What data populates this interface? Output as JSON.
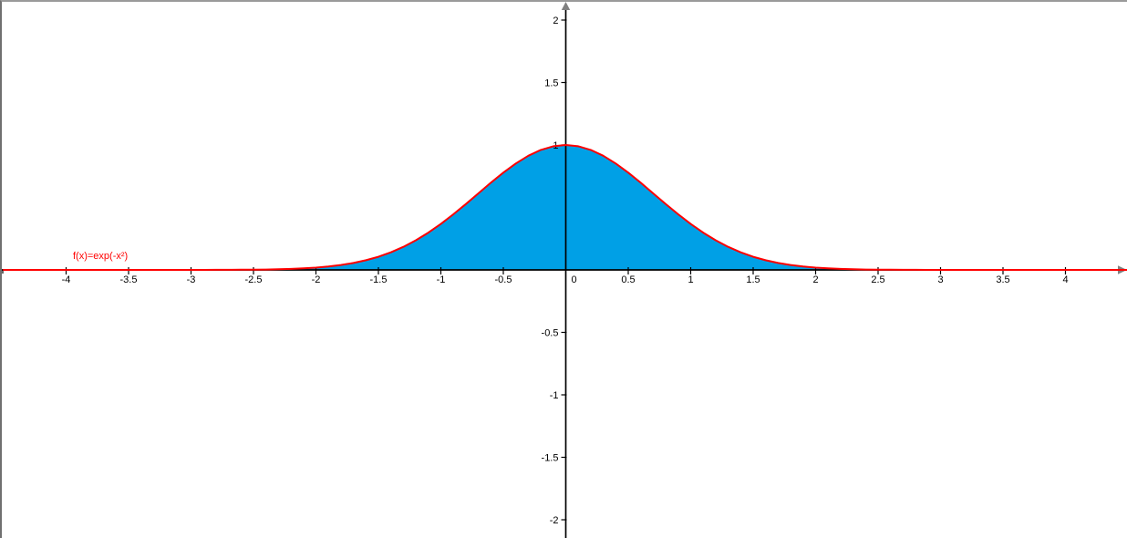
{
  "window": {
    "background_color": "#FFFFFF",
    "border_top_color": "#9A9A9A",
    "border_left_color": "#707070"
  },
  "chart_data": {
    "type": "area",
    "title": "",
    "function_label": "f(x)=exp(-x²)",
    "function_label_color": "#FF0000",
    "curve_color": "#FF0000",
    "fill_color": "#00A0E6",
    "axis_color": "#000000",
    "arrow_color": "#808080",
    "grid": false,
    "legend_position": "none",
    "x_axis": {
      "min": -4.53,
      "max": 4.5,
      "tick_step": 0.5,
      "visible_tick_labels": [
        "-4",
        "-3.5",
        "-3",
        "-2.5",
        "-2",
        "-1.5",
        "-1",
        "-0.5",
        "0",
        "0.5",
        "1",
        "1.5",
        "2",
        "2.5",
        "3",
        "3.5",
        "4"
      ]
    },
    "y_axis": {
      "min": -2.15,
      "max": 2.15,
      "tick_step": 0.5,
      "visible_tick_labels": [
        "2",
        "1.5",
        "1",
        "-0.5",
        "-1",
        "-1.5",
        "-2"
      ]
    },
    "series": [
      {
        "name": "f",
        "fill_under_curve": true,
        "samples": {
          "x_start": -4.5,
          "x_step": 0.1,
          "y": [
            0,
            0,
            0,
            0,
            0,
            0,
            0,
            0,
            0,
            0,
            0,
            0,
            0,
            0,
            0,
            0.0001,
            0.0002,
            0.0004,
            0.0007,
            0.0012,
            0.0019,
            0.0032,
            0.005,
            0.0079,
            0.0121,
            0.0183,
            0.027,
            0.0392,
            0.0556,
            0.0773,
            0.1054,
            0.1409,
            0.1845,
            0.2369,
            0.2982,
            0.3679,
            0.4449,
            0.5273,
            0.6126,
            0.6977,
            0.7788,
            0.8521,
            0.9139,
            0.9608,
            0.99,
            1,
            0.99,
            0.9608,
            0.9139,
            0.8521,
            0.7788,
            0.6977,
            0.6126,
            0.5273,
            0.4449,
            0.3679,
            0.2982,
            0.2369,
            0.1845,
            0.1409,
            0.1054,
            0.0773,
            0.0556,
            0.0392,
            0.027,
            0.0183,
            0.0121,
            0.0079,
            0.005,
            0.0032,
            0.0019,
            0.0012,
            0.0007,
            0.0004,
            0.0002,
            0.0001,
            0,
            0,
            0,
            0,
            0,
            0,
            0,
            0,
            0,
            0,
            0,
            0,
            0,
            0,
            0
          ]
        }
      }
    ]
  }
}
